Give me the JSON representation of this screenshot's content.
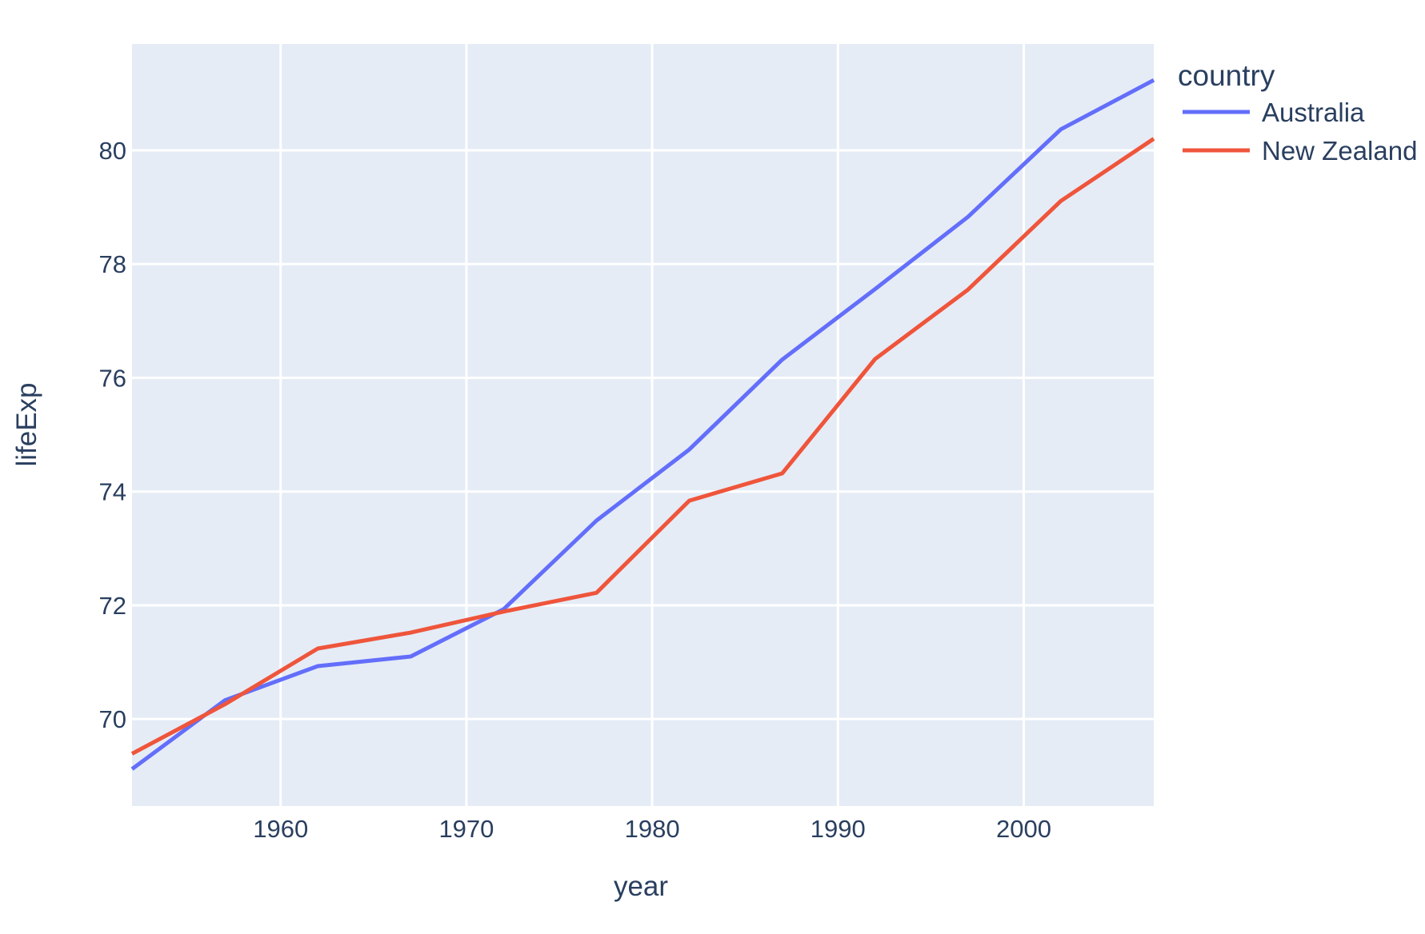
{
  "chart_data": {
    "type": "line",
    "title": "",
    "xlabel": "year",
    "ylabel": "lifeExp",
    "x": [
      1952,
      1957,
      1962,
      1967,
      1972,
      1977,
      1982,
      1987,
      1992,
      1997,
      2002,
      2007
    ],
    "series": [
      {
        "name": "Australia",
        "color": "#636EFA",
        "values": [
          69.12,
          70.33,
          70.93,
          71.1,
          71.93,
          73.49,
          74.74,
          76.32,
          77.56,
          78.83,
          80.37,
          81.235
        ]
      },
      {
        "name": "New Zealand",
        "color": "#EF553B",
        "values": [
          69.39,
          70.26,
          71.24,
          71.52,
          71.89,
          72.22,
          73.84,
          74.32,
          76.33,
          77.55,
          79.11,
          80.204
        ]
      }
    ],
    "xlim": [
      1952,
      2007
    ],
    "ylim": [
      68.47,
      81.87
    ],
    "x_ticks": [
      1960,
      1970,
      1980,
      1990,
      2000
    ],
    "y_ticks": [
      70,
      72,
      74,
      76,
      78,
      80
    ],
    "grid": true,
    "legend_position": "top-right-outside",
    "plot_bg": "#E5ECF6",
    "grid_color": "#FFFFFF",
    "text_color": "#2A3F5F"
  },
  "legend": {
    "title": "country"
  }
}
